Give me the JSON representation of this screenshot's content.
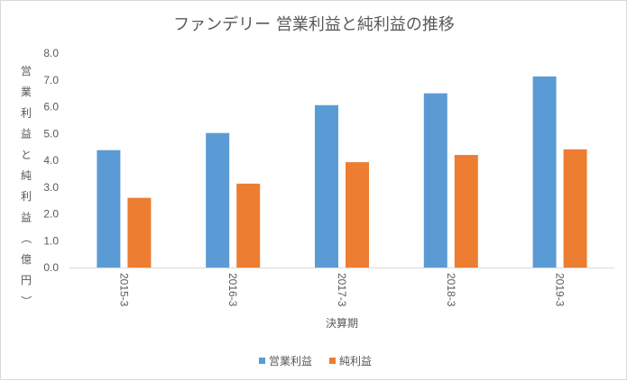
{
  "chart_data": {
    "type": "bar",
    "title": "ファンデリー 営業利益と純利益の推移",
    "xlabel": "決算期",
    "ylabel": "営業利益と純利益（億円）",
    "categories": [
      "2015-3",
      "2016-3",
      "2017-3",
      "2018-3",
      "2019-3"
    ],
    "series": [
      {
        "name": "営業利益",
        "color": "#5b9bd5",
        "values": [
          4.38,
          5.02,
          6.06,
          6.5,
          7.13
        ]
      },
      {
        "name": "純利益",
        "color": "#ed7d31",
        "values": [
          2.6,
          3.13,
          3.93,
          4.2,
          4.41
        ]
      }
    ],
    "ylim": [
      0,
      8
    ],
    "yticks": [
      "0.0",
      "1.0",
      "2.0",
      "3.0",
      "4.0",
      "5.0",
      "6.0",
      "7.0",
      "8.0"
    ],
    "grid": false,
    "legend_position": "bottom"
  }
}
